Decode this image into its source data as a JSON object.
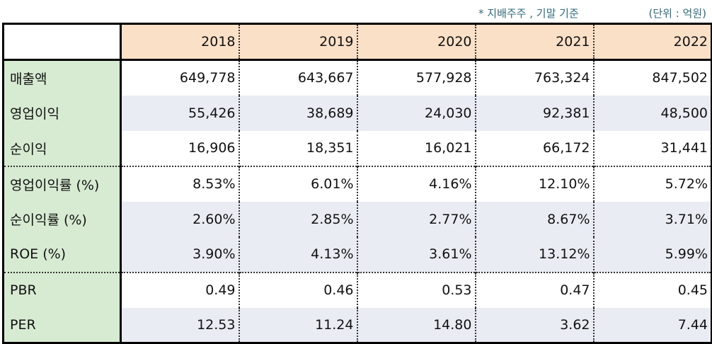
{
  "notes": {
    "basis": "* 지배주주 , 기말 기준",
    "unit": "(단위 : 억원)"
  },
  "table": {
    "corner": "",
    "years": [
      "2018",
      "2019",
      "2020",
      "2021",
      "2022"
    ],
    "rows": [
      {
        "label": "매출액",
        "values": [
          "649,778",
          "643,667",
          "577,928",
          "763,324",
          "847,502"
        ]
      },
      {
        "label": "영업이익",
        "values": [
          "55,426",
          "38,689",
          "24,030",
          "92,381",
          "48,500"
        ]
      },
      {
        "label": "순이익",
        "values": [
          "16,906",
          "18,351",
          "16,021",
          "66,172",
          "31,441"
        ]
      },
      {
        "label": "영업이익률 (%)",
        "values": [
          "8.53%",
          "6.01%",
          "4.16%",
          "12.10%",
          "5.72%"
        ]
      },
      {
        "label": "순이익률 (%)",
        "values": [
          "2.60%",
          "2.85%",
          "2.77%",
          "8.67%",
          "3.71%"
        ]
      },
      {
        "label": "ROE (%)",
        "values": [
          "3.90%",
          "4.13%",
          "3.61%",
          "13.12%",
          "5.99%"
        ]
      },
      {
        "label": "PBR",
        "values": [
          "0.49",
          "0.46",
          "0.53",
          "0.47",
          "0.45"
        ]
      },
      {
        "label": "PER",
        "values": [
          "12.53",
          "11.24",
          "14.80",
          "3.62",
          "7.44"
        ]
      }
    ]
  },
  "colors": {
    "header_bg": "#fbe0c8",
    "label_bg": "#d7ebd2",
    "shade_bg": "#e9ecf2",
    "note_text": "#2f6d7e"
  }
}
